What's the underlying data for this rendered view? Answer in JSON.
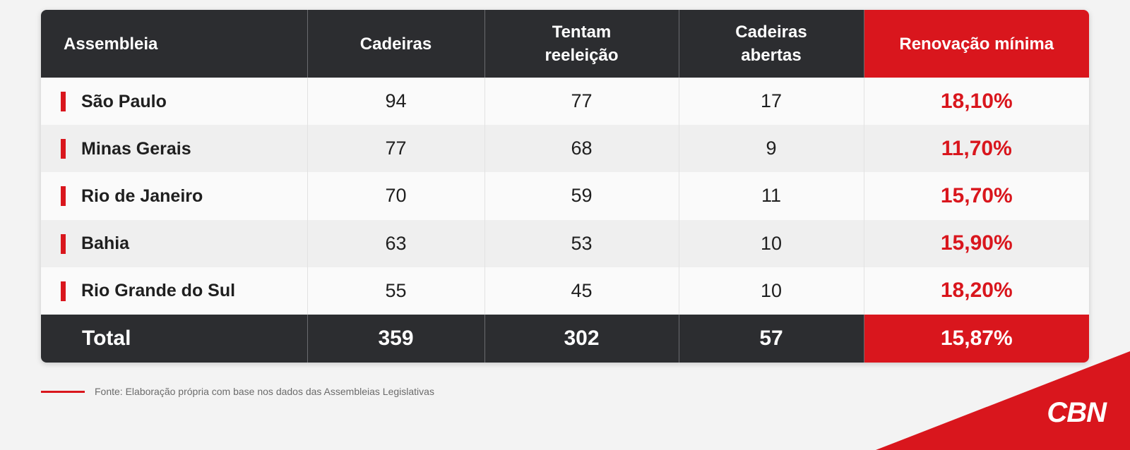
{
  "chart_data": {
    "type": "table",
    "columns": [
      "Assembleia",
      "Cadeiras",
      "Tentam reeleição",
      "Cadeiras abertas",
      "Renovação mínima"
    ],
    "header_lines": [
      [
        "Assembleia"
      ],
      [
        "Cadeiras"
      ],
      [
        "Tentam",
        "reeleição"
      ],
      [
        "Cadeiras",
        "abertas"
      ],
      [
        "Renovação mínima"
      ]
    ],
    "rows": [
      {
        "assembleia": "São Paulo",
        "cadeiras": "94",
        "tentam_reeleicao": "77",
        "cadeiras_abertas": "17",
        "renovacao_minima": "18,10%"
      },
      {
        "assembleia": "Minas Gerais",
        "cadeiras": "77",
        "tentam_reeleicao": "68",
        "cadeiras_abertas": "9",
        "renovacao_minima": "11,70%"
      },
      {
        "assembleia": "Rio de Janeiro",
        "cadeiras": "70",
        "tentam_reeleicao": "59",
        "cadeiras_abertas": "11",
        "renovacao_minima": "15,70%"
      },
      {
        "assembleia": "Bahia",
        "cadeiras": "63",
        "tentam_reeleicao": "53",
        "cadeiras_abertas": "10",
        "renovacao_minima": "15,90%"
      },
      {
        "assembleia": "Rio Grande do Sul",
        "cadeiras": "55",
        "tentam_reeleicao": "45",
        "cadeiras_abertas": "10",
        "renovacao_minima": "18,20%"
      }
    ],
    "total": {
      "label": "Total",
      "cadeiras": "359",
      "tentam_reeleicao": "302",
      "cadeiras_abertas": "57",
      "renovacao_minima": "15,87%"
    }
  },
  "footer": {
    "source": "Fonte: Elaboração própria com base nos dados das Assembleias Legislativas"
  },
  "brand": {
    "logo_text": "CBN",
    "logo_icon": "cbn-logo-icon"
  },
  "colors": {
    "accent_red": "#d9161d",
    "header_dark": "#2c2d30",
    "background": "#f3f3f3"
  }
}
